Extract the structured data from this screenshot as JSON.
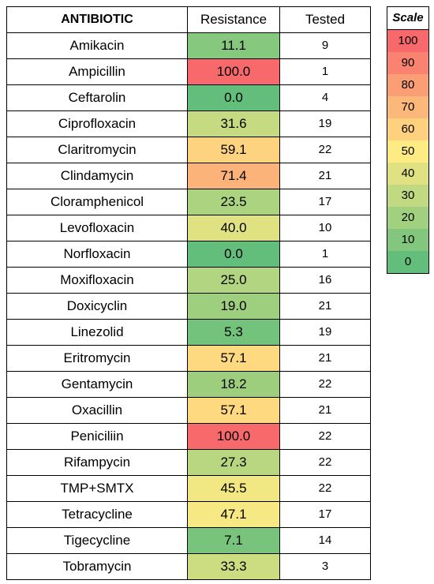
{
  "chart_data": {
    "type": "heatmap",
    "columns": [
      "ANTIBIOTIC",
      "Resistance",
      "Tested"
    ],
    "rows": [
      {
        "antibiotic": "Amikacin",
        "resistance": "11.1",
        "tested": "9"
      },
      {
        "antibiotic": "Ampicillin",
        "resistance": "100.0",
        "tested": "1"
      },
      {
        "antibiotic": "Ceftarolin",
        "resistance": "0.0",
        "tested": "4"
      },
      {
        "antibiotic": "Ciprofloxacin",
        "resistance": "31.6",
        "tested": "19"
      },
      {
        "antibiotic": "Claritromycin",
        "resistance": "59.1",
        "tested": "22"
      },
      {
        "antibiotic": "Clindamycin",
        "resistance": "71.4",
        "tested": "21"
      },
      {
        "antibiotic": "Cloramphenicol",
        "resistance": "23.5",
        "tested": "17"
      },
      {
        "antibiotic": "Levofloxacin",
        "resistance": "40.0",
        "tested": "10"
      },
      {
        "antibiotic": "Norfloxacin",
        "resistance": "0.0",
        "tested": "1"
      },
      {
        "antibiotic": "Moxifloxacin",
        "resistance": "25.0",
        "tested": "16"
      },
      {
        "antibiotic": "Doxicyclin",
        "resistance": "19.0",
        "tested": "21"
      },
      {
        "antibiotic": "Linezolid",
        "resistance": "5.3",
        "tested": "19"
      },
      {
        "antibiotic": "Eritromycin",
        "resistance": "57.1",
        "tested": "21"
      },
      {
        "antibiotic": "Gentamycin",
        "resistance": "18.2",
        "tested": "22"
      },
      {
        "antibiotic": "Oxacillin",
        "resistance": "57.1",
        "tested": "21"
      },
      {
        "antibiotic": "Peniciliin",
        "resistance": "100.0",
        "tested": "22"
      },
      {
        "antibiotic": "Rifampycin",
        "resistance": "27.3",
        "tested": "22"
      },
      {
        "antibiotic": "TMP+SMTX",
        "resistance": "45.5",
        "tested": "22"
      },
      {
        "antibiotic": "Tetracycline",
        "resistance": "47.1",
        "tested": "17"
      },
      {
        "antibiotic": "Tigecycline",
        "resistance": "7.1",
        "tested": "14"
      },
      {
        "antibiotic": "Tobramycin",
        "resistance": "33.3",
        "tested": "3"
      }
    ],
    "scale": {
      "title": "Scale",
      "values": [
        "100",
        "90",
        "80",
        "70",
        "60",
        "50",
        "40",
        "30",
        "20",
        "10",
        "0"
      ],
      "min": 0,
      "max": 100,
      "colors": {
        "low": "#63be7b",
        "mid": "#ffeb84",
        "high": "#f8696b"
      }
    }
  }
}
